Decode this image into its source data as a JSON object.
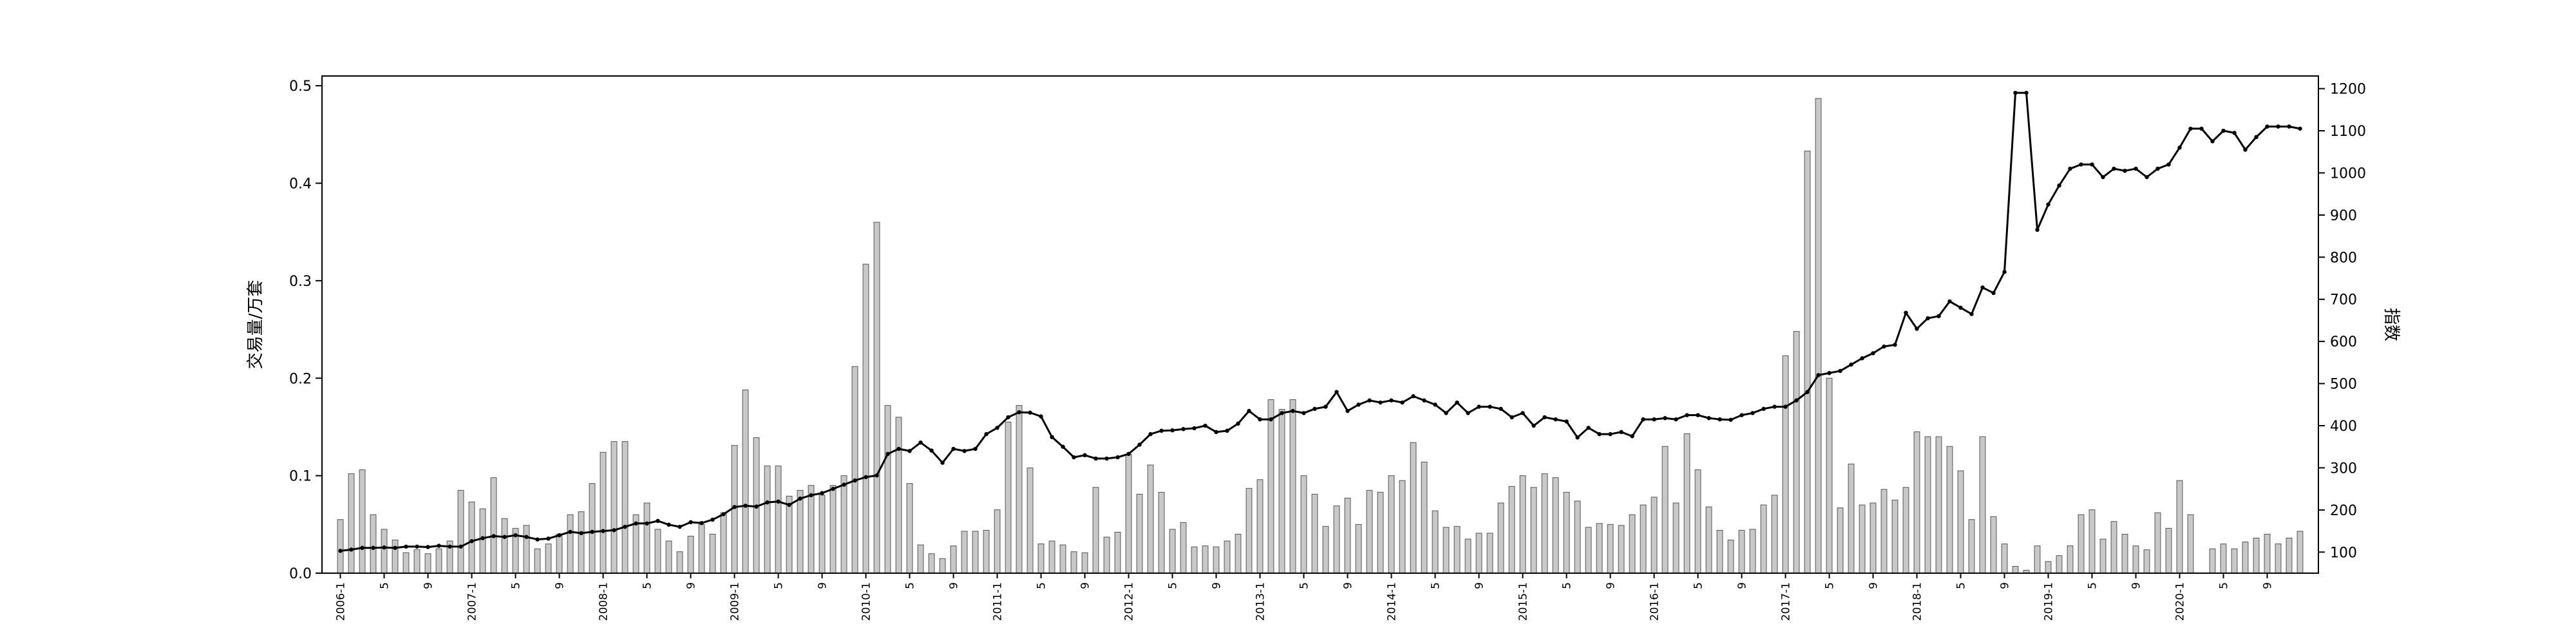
{
  "chart_data": {
    "type": "bar+line",
    "title": "",
    "ylabel_left": "交易量/万套",
    "ylabel_right": "指数",
    "ylim_left": [
      0,
      0.51
    ],
    "yticks_left": [
      0.0,
      0.1,
      0.2,
      0.3,
      0.4,
      0.5
    ],
    "ytick_labels_left": [
      "0.0",
      "0.1",
      "0.2",
      "0.3",
      "0.4",
      "0.5"
    ],
    "ylim_right": [
      50,
      1230
    ],
    "yticks_right": [
      100,
      200,
      300,
      400,
      500,
      600,
      700,
      800,
      900,
      1000,
      1100,
      1200
    ],
    "ytick_labels_right": [
      "100",
      "200",
      "300",
      "400",
      "500",
      "600",
      "700",
      "800",
      "900",
      "1000",
      "1100",
      "1200"
    ],
    "x_tick_labels": [
      "2006-1",
      "5",
      "9",
      "2007-1",
      "5",
      "9",
      "2008-1",
      "5",
      "9",
      "2009-1",
      "5",
      "9",
      "2010-1",
      "5",
      "9",
      "2011-1",
      "5",
      "9",
      "2012-1",
      "5",
      "9",
      "2013-1",
      "5",
      "9",
      "2014-1",
      "5",
      "9",
      "2015-1",
      "5",
      "9",
      "2016-1",
      "5",
      "9",
      "2017-1",
      "5",
      "9",
      "2018-1",
      "5",
      "9",
      "2019-1",
      "5",
      "9",
      "2020-1",
      "5",
      "9"
    ],
    "months_start": "2006-01",
    "series": [
      {
        "name": "",
        "kind": "bar",
        "color": "#c8c8c8",
        "values": [
          0.055,
          0.102,
          0.106,
          0.06,
          0.045,
          0.034,
          0.021,
          0.024,
          0.02,
          0.025,
          0.033,
          0.085,
          0.073,
          0.066,
          0.098,
          0.056,
          0.046,
          0.049,
          0.025,
          0.03,
          0.04,
          0.06,
          0.063,
          0.092,
          0.124,
          0.135,
          0.135,
          0.06,
          0.072,
          0.045,
          0.033,
          0.022,
          0.038,
          0.05,
          0.04,
          0.062,
          0.131,
          0.188,
          0.139,
          0.11,
          0.11,
          0.079,
          0.085,
          0.09,
          0.08,
          0.09,
          0.1,
          0.212,
          0.317,
          0.36,
          0.172,
          0.16,
          0.092,
          0.029,
          0.02,
          0.015,
          0.028,
          0.043,
          0.043,
          0.044,
          0.065,
          0.155,
          0.172,
          0.108,
          0.03,
          0.033,
          0.029,
          0.022,
          0.021,
          0.088,
          0.037,
          0.042,
          0.122,
          0.081,
          0.111,
          0.083,
          0.045,
          0.052,
          0.027,
          0.028,
          0.027,
          0.033,
          0.04,
          0.087,
          0.096,
          0.178,
          0.168,
          0.178,
          0.1,
          0.081,
          0.048,
          0.069,
          0.077,
          0.05,
          0.085,
          0.083,
          0.1,
          0.095,
          0.134,
          0.114,
          0.064,
          0.047,
          0.048,
          0.035,
          0.041,
          0.041,
          0.072,
          0.089,
          0.1,
          0.088,
          0.102,
          0.098,
          0.083,
          0.074,
          0.047,
          0.051,
          0.05,
          0.049,
          0.06,
          0.07,
          0.078,
          0.13,
          0.072,
          0.143,
          0.106,
          0.068,
          0.044,
          0.034,
          0.044,
          0.045,
          0.07,
          0.08,
          0.223,
          0.248,
          0.433,
          0.487,
          0.2,
          0.067,
          0.112,
          0.07,
          0.072,
          0.086,
          0.075,
          0.088,
          0.145,
          0.14,
          0.14,
          0.13,
          0.105,
          0.055,
          0.14,
          0.058,
          0.03,
          0.007,
          0.003,
          0.028,
          0.012,
          0.018,
          0.028,
          0.06,
          0.065,
          0.035,
          0.053,
          0.04,
          0.028,
          0.024,
          0.062,
          0.046,
          0.095,
          0.06,
          0.0,
          0.025,
          0.03,
          0.025,
          0.032,
          0.036,
          0.04,
          0.03,
          0.036,
          0.043
        ]
      },
      {
        "name": "",
        "kind": "line",
        "color": "#000000",
        "values": [
          103,
          106,
          110,
          110,
          111,
          110,
          113,
          113,
          112,
          115,
          113,
          113,
          126,
          133,
          138,
          136,
          140,
          136,
          130,
          132,
          140,
          148,
          145,
          148,
          150,
          152,
          160,
          168,
          168,
          174,
          165,
          160,
          171,
          169,
          177,
          190,
          207,
          210,
          208,
          218,
          220,
          212,
          227,
          235,
          240,
          250,
          260,
          270,
          278,
          282,
          333,
          345,
          340,
          360,
          341,
          312,
          345,
          340,
          345,
          380,
          395,
          420,
          432,
          431,
          422,
          373,
          350,
          325,
          330,
          322,
          322,
          325,
          333,
          355,
          380,
          388,
          389,
          392,
          394,
          400,
          385,
          388,
          405,
          435,
          415,
          415,
          430,
          435,
          430,
          440,
          445,
          480,
          435,
          450,
          460,
          455,
          460,
          455,
          470,
          460,
          450,
          430,
          455,
          430,
          445,
          445,
          440,
          420,
          430,
          400,
          420,
          415,
          410,
          372,
          395,
          380,
          380,
          385,
          375,
          415,
          415,
          418,
          415,
          425,
          425,
          418,
          415,
          414,
          425,
          430,
          440,
          445,
          445,
          460,
          480,
          520,
          525,
          530,
          545,
          560,
          572,
          588,
          592,
          668,
          630,
          655,
          660,
          695,
          680,
          665,
          728,
          715,
          765,
          1190,
          1190,
          865,
          925,
          970,
          1010,
          1020,
          1020,
          990,
          1010,
          1005,
          1010,
          990,
          1010,
          1020,
          1060,
          1105,
          1105,
          1075,
          1100,
          1095,
          1055,
          1085,
          1110,
          1110,
          1110,
          1105
        ]
      }
    ],
    "grid": false,
    "legend": "none"
  }
}
